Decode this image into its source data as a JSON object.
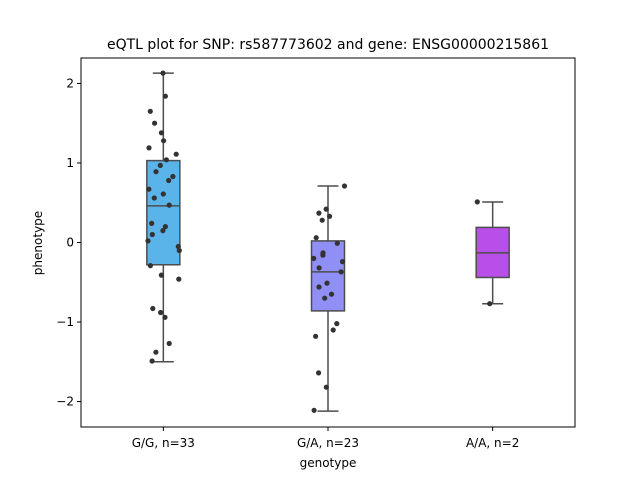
{
  "chart_data": {
    "type": "box",
    "title": "eQTL plot for SNP: rs587773602 and gene: ENSG00000215861",
    "xlabel": "genotype",
    "ylabel": "phenotype",
    "ylim": [
      -2.32,
      2.32
    ],
    "yticks": [
      -2,
      -1,
      0,
      1,
      2
    ],
    "ytick_labels": [
      "−2",
      "−1",
      "0",
      "1",
      "2"
    ],
    "grid": false,
    "legend": "none",
    "categories": [
      "G/G, n=33",
      "G/A, n=23",
      "A/A, n=2"
    ],
    "boxes": [
      {
        "category": "G/G, n=33",
        "color": "#5ab4ea",
        "whisker_low": -1.5,
        "q1": -0.28,
        "median": 0.46,
        "q3": 1.03,
        "whisker_high": 2.13
      },
      {
        "category": "G/A, n=23",
        "color": "#8f8ff6",
        "whisker_low": -2.12,
        "q1": -0.86,
        "median": -0.37,
        "q3": 0.02,
        "whisker_high": 0.71
      },
      {
        "category": "A/A, n=2",
        "color": "#b84fe8",
        "whisker_low": -0.77,
        "q1": -0.44,
        "median": -0.13,
        "q3": 0.19,
        "whisker_high": 0.51
      }
    ],
    "points": [
      [
        2.13,
        1.84,
        1.65,
        1.5,
        1.38,
        1.28,
        1.19,
        1.11,
        1.04,
        0.97,
        0.89,
        0.83,
        0.78,
        0.67,
        0.61,
        0.56,
        0.47,
        0.24,
        0.2,
        0.15,
        0.1,
        0.02,
        -0.05,
        -0.1,
        -0.29,
        -0.41,
        -0.46,
        -0.83,
        -0.88,
        -0.94,
        -1.27,
        -1.38,
        -1.49
      ],
      [
        0.71,
        0.42,
        0.37,
        0.33,
        0.28,
        0.06,
        -0.01,
        -0.13,
        -0.16,
        -0.2,
        -0.24,
        -0.32,
        -0.37,
        -0.51,
        -0.56,
        -0.65,
        -0.7,
        -1.02,
        -1.1,
        -1.18,
        -1.64,
        -1.82,
        -2.11
      ],
      [
        0.51,
        -0.77
      ]
    ]
  }
}
